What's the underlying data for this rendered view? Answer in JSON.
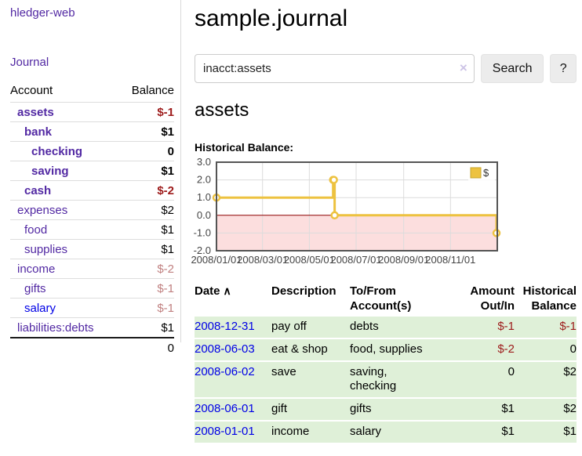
{
  "colors": {
    "link_purple": "#5229a3",
    "link_blue": "#0000e6",
    "negative_strong": "#9d1a1a",
    "negative_muted": "#c08080",
    "row_green": "#dff0d8",
    "chart_line": "#edc240",
    "chart_negative_fill": "#fcdede",
    "chart_zero_line": "#8b0000",
    "chart_border": "#545454"
  },
  "sidebar": {
    "app_title": "hledger-web",
    "journal_link": "Journal",
    "accounts": {
      "header_account": "Account",
      "header_balance": "Balance",
      "rows": [
        {
          "name": "assets",
          "balance": "$-1",
          "indent": 0,
          "bold": true,
          "bal": "neg",
          "link": "purple"
        },
        {
          "name": "bank",
          "balance": "$1",
          "indent": 1,
          "bold": true,
          "bal": "pos",
          "link": "purple"
        },
        {
          "name": "checking",
          "balance": "0",
          "indent": 2,
          "bold": true,
          "bal": "pos",
          "link": "purple"
        },
        {
          "name": "saving",
          "balance": "$1",
          "indent": 2,
          "bold": true,
          "bal": "pos",
          "link": "purple"
        },
        {
          "name": "cash",
          "balance": "$-2",
          "indent": 1,
          "bold": true,
          "bal": "neg",
          "link": "purple"
        },
        {
          "name": "expenses",
          "balance": "$2",
          "indent": 0,
          "bold": false,
          "bal": "pos",
          "link": "purple"
        },
        {
          "name": "food",
          "balance": "$1",
          "indent": 1,
          "bold": false,
          "bal": "pos",
          "link": "purple"
        },
        {
          "name": "supplies",
          "balance": "$1",
          "indent": 1,
          "bold": false,
          "bal": "pos",
          "link": "purple"
        },
        {
          "name": "income",
          "balance": "$-2",
          "indent": 0,
          "bold": false,
          "bal": "negmuted",
          "link": "purple"
        },
        {
          "name": "gifts",
          "balance": "$-1",
          "indent": 1,
          "bold": false,
          "bal": "negmuted",
          "link": "purple"
        },
        {
          "name": "salary",
          "balance": "$-1",
          "indent": 1,
          "bold": false,
          "bal": "negmuted",
          "link": "blue"
        },
        {
          "name": "liabilities:debts",
          "balance": "$1",
          "indent": 0,
          "bold": false,
          "bal": "pos",
          "link": "purple"
        }
      ],
      "total": "0"
    }
  },
  "main": {
    "title": "sample.journal",
    "search": {
      "value": "inacct:assets",
      "clear_icon": "×",
      "search_button": "Search",
      "help_button": "?"
    },
    "account_heading": "assets",
    "chart_heading": "Historical Balance:",
    "register": {
      "columns": {
        "date": "Date",
        "description": "Description",
        "accounts": "To/From Account(s)",
        "amount": "Amount Out/In",
        "balance": "Historical Balance"
      },
      "sort_icon": "∧",
      "rows": [
        {
          "date": "2008-12-31",
          "description": "pay off",
          "accounts": "debts",
          "amount": "$-1",
          "amount_neg": true,
          "balance": "$-1",
          "balance_neg": true
        },
        {
          "date": "2008-06-03",
          "description": "eat & shop",
          "accounts": "food, supplies",
          "amount": "$-2",
          "amount_neg": true,
          "balance": "0",
          "balance_neg": false
        },
        {
          "date": "2008-06-02",
          "description": "save",
          "accounts": "saving,\nchecking",
          "amount": "0",
          "amount_neg": false,
          "balance": "$2",
          "balance_neg": false
        },
        {
          "date": "2008-06-01",
          "description": "gift",
          "accounts": "gifts",
          "amount": "$1",
          "amount_neg": false,
          "balance": "$2",
          "balance_neg": false
        },
        {
          "date": "2008-01-01",
          "description": "income",
          "accounts": "salary",
          "amount": "$1",
          "amount_neg": false,
          "balance": "$1",
          "balance_neg": false
        }
      ]
    }
  },
  "chart_data": {
    "type": "line",
    "step": true,
    "title": "Historical Balance",
    "series": [
      {
        "name": "$",
        "color": "#edc240",
        "points": [
          {
            "date": "2008-01-01",
            "value": 1
          },
          {
            "date": "2008-06-01",
            "value": 2
          },
          {
            "date": "2008-06-02",
            "value": 2
          },
          {
            "date": "2008-06-03",
            "value": 0
          },
          {
            "date": "2008-12-31",
            "value": -1
          }
        ]
      }
    ],
    "x_ticks": [
      "2008/01/01",
      "2008/03/01",
      "2008/05/01",
      "2008/07/01",
      "2008/09/01",
      "2008/11/01"
    ],
    "x_range": [
      "2008-01-01",
      "2009-01-01"
    ],
    "y_ticks": [
      3.0,
      2.0,
      1.0,
      0.0,
      -1.0,
      -2.0
    ],
    "ylim": [
      -2,
      3
    ],
    "grid": true,
    "negative_region_fill": "#fcdede",
    "zero_line_color": "#8b0000",
    "legend": {
      "label": "$",
      "position": "top-right"
    }
  }
}
